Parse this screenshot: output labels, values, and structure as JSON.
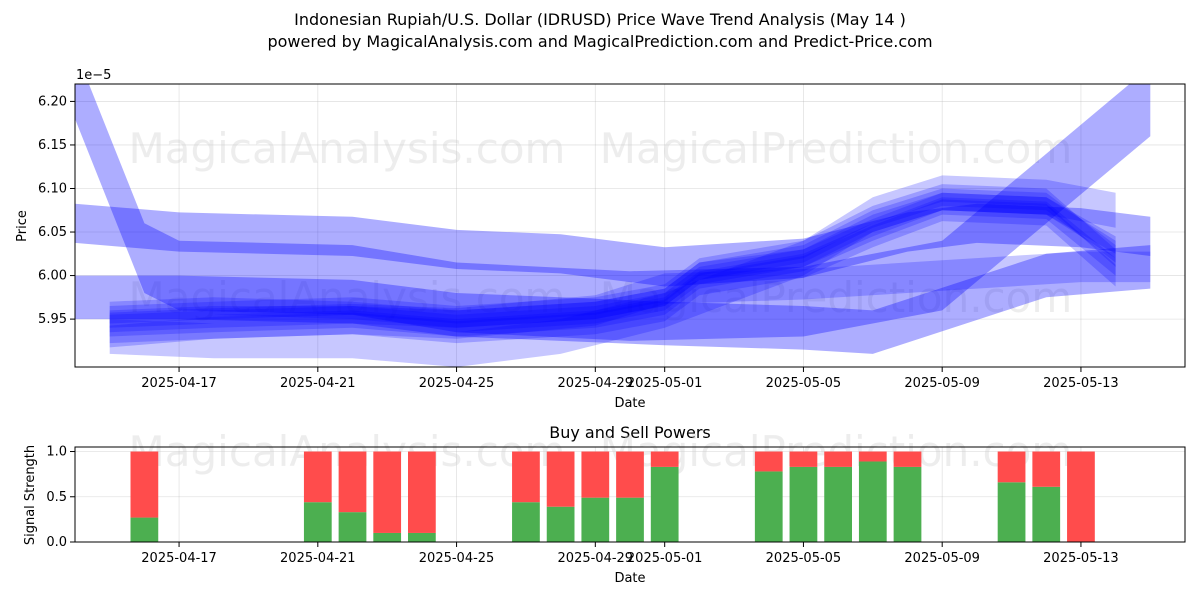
{
  "title_line1": "Indonesian Rupiah/U.S. Dollar (IDRUSD) Price Wave Trend Analysis (May 14 )",
  "title_line2": "powered by MagicalAnalysis.com and MagicalPrediction.com and Predict-Price.com",
  "watermarks": {
    "left": "MagicalAnalysis.com",
    "right": "MagicalPrediction.com"
  },
  "colors": {
    "wave": "#0000ff",
    "buy": "#4caf50",
    "sell": "#ff4c4c"
  },
  "chart_data": [
    {
      "type": "area",
      "xlabel": "Date",
      "ylabel": "Price",
      "y_offset_label": "1e−5",
      "xlim": [
        "2025-04-14",
        "2025-05-16"
      ],
      "ylim": [
        5.895,
        6.22
      ],
      "yticks": [
        5.95,
        6.0,
        6.05,
        6.1,
        6.15,
        6.2
      ],
      "ytick_labels": [
        "5.95",
        "6.00",
        "6.05",
        "6.10",
        "6.15",
        "6.20"
      ],
      "xticks": [
        "2025-04-17",
        "2025-04-21",
        "2025-04-25",
        "2025-04-29",
        "2025-05-01",
        "2025-05-05",
        "2025-05-09",
        "2025-05-13"
      ],
      "grid": true,
      "series": [
        {
          "x": [
            "2025-04-14",
            "2025-04-16",
            "2025-04-17",
            "2025-04-22",
            "2025-04-25",
            "2025-04-30",
            "2025-05-05",
            "2025-05-09",
            "2025-05-12",
            "2025-05-15"
          ],
          "y": [
            6.22,
            6.02,
            6.0,
            5.995,
            5.975,
            5.965,
            5.97,
            6.0,
            6.1,
            6.2
          ],
          "width": 0.08
        },
        {
          "x": [
            "2025-04-14",
            "2025-04-17",
            "2025-04-22",
            "2025-04-25",
            "2025-04-28",
            "2025-05-01",
            "2025-05-05",
            "2025-05-08",
            "2025-05-10",
            "2025-05-13",
            "2025-05-15"
          ],
          "y": [
            6.06,
            6.05,
            6.045,
            6.03,
            6.025,
            6.01,
            6.02,
            6.05,
            6.06,
            6.055,
            6.045
          ],
          "width": 0.045
        },
        {
          "x": [
            "2025-04-14",
            "2025-04-17",
            "2025-04-22",
            "2025-04-25",
            "2025-04-28",
            "2025-05-01",
            "2025-05-05",
            "2025-05-07",
            "2025-05-12",
            "2025-05-15"
          ],
          "y": [
            5.975,
            5.975,
            5.97,
            5.955,
            5.95,
            5.945,
            5.94,
            5.935,
            6.0,
            6.01
          ],
          "width": 0.05
        },
        {
          "x": [
            "2025-04-15",
            "2025-04-18",
            "2025-04-22",
            "2025-04-25",
            "2025-04-29",
            "2025-05-01",
            "2025-05-02",
            "2025-05-05",
            "2025-05-07",
            "2025-05-09",
            "2025-05-12",
            "2025-05-14"
          ],
          "y": [
            5.95,
            5.955,
            5.955,
            5.945,
            5.955,
            5.97,
            6.0,
            6.02,
            6.06,
            6.085,
            6.08,
            6.03
          ],
          "width": 0.02
        },
        {
          "x": [
            "2025-04-15",
            "2025-04-18",
            "2025-04-22",
            "2025-04-25",
            "2025-04-29",
            "2025-05-01",
            "2025-05-02",
            "2025-05-05",
            "2025-05-07",
            "2025-05-09",
            "2025-05-12",
            "2025-05-14"
          ],
          "y": [
            5.945,
            5.95,
            5.955,
            5.95,
            5.96,
            5.975,
            6.005,
            6.025,
            6.065,
            6.09,
            6.085,
            6.025
          ],
          "width": 0.02
        },
        {
          "x": [
            "2025-04-15",
            "2025-04-18",
            "2025-04-22",
            "2025-04-25",
            "2025-04-29",
            "2025-05-01",
            "2025-05-02",
            "2025-05-05",
            "2025-05-07",
            "2025-05-09",
            "2025-05-12",
            "2025-05-14"
          ],
          "y": [
            5.955,
            5.96,
            5.965,
            5.955,
            5.965,
            5.98,
            6.01,
            6.03,
            6.07,
            6.095,
            6.09,
            6.02
          ],
          "width": 0.02
        },
        {
          "x": [
            "2025-04-15",
            "2025-04-18",
            "2025-04-22",
            "2025-04-25",
            "2025-04-29",
            "2025-05-01",
            "2025-05-02",
            "2025-05-05",
            "2025-05-07",
            "2025-05-09",
            "2025-05-12",
            "2025-05-14"
          ],
          "y": [
            5.94,
            5.945,
            5.95,
            5.94,
            5.95,
            5.965,
            5.995,
            6.015,
            6.05,
            6.08,
            6.075,
            6.01
          ],
          "width": 0.02
        },
        {
          "x": [
            "2025-04-15",
            "2025-04-18",
            "2025-04-22",
            "2025-04-25",
            "2025-04-29",
            "2025-05-01",
            "2025-05-02",
            "2025-05-05",
            "2025-05-07",
            "2025-05-09",
            "2025-05-12",
            "2025-05-14"
          ],
          "y": [
            5.96,
            5.965,
            5.96,
            5.95,
            5.96,
            5.975,
            6.005,
            6.02,
            6.055,
            6.085,
            6.08,
            6.035
          ],
          "width": 0.02
        },
        {
          "x": [
            "2025-04-15",
            "2025-04-18",
            "2025-04-22",
            "2025-04-25",
            "2025-04-29",
            "2025-05-01",
            "2025-05-02",
            "2025-05-05",
            "2025-05-07",
            "2025-05-09",
            "2025-05-12",
            "2025-05-14"
          ],
          "y": [
            5.93,
            5.94,
            5.945,
            5.935,
            5.945,
            5.96,
            5.99,
            6.01,
            6.045,
            6.075,
            6.07,
            6.0
          ],
          "width": 0.025
        },
        {
          "x": [
            "2025-04-15",
            "2025-04-18",
            "2025-04-22",
            "2025-04-25",
            "2025-04-29",
            "2025-05-01",
            "2025-05-05",
            "2025-05-09",
            "2025-05-13",
            "2025-05-15"
          ],
          "y": [
            5.94,
            5.945,
            5.95,
            5.945,
            5.96,
            5.985,
            5.99,
            6.0,
            6.01,
            6.01
          ],
          "width": 0.035
        },
        {
          "x": [
            "2025-04-15",
            "2025-04-18",
            "2025-04-22",
            "2025-04-25",
            "2025-04-28",
            "2025-05-01",
            "2025-05-05",
            "2025-05-07",
            "2025-05-09",
            "2025-05-12",
            "2025-05-14"
          ],
          "y": [
            5.93,
            5.925,
            5.925,
            5.915,
            5.93,
            5.96,
            6.02,
            6.07,
            6.095,
            6.09,
            6.075
          ],
          "width": 0.04
        }
      ]
    },
    {
      "type": "bar",
      "stacked": true,
      "title": "Buy and Sell Powers",
      "xlabel": "Date",
      "ylabel": "Signal Strength",
      "ylim": [
        0,
        1.05
      ],
      "yticks": [
        0.0,
        0.5,
        1.0
      ],
      "ytick_labels": [
        "0.0",
        "0.5",
        "1.0"
      ],
      "xticks": [
        "2025-04-17",
        "2025-04-21",
        "2025-04-25",
        "2025-04-29",
        "2025-05-01",
        "2025-05-05",
        "2025-05-09",
        "2025-05-13"
      ],
      "categories": [
        "2025-04-16",
        "2025-04-21",
        "2025-04-22",
        "2025-04-23",
        "2025-04-24",
        "2025-04-27",
        "2025-04-28",
        "2025-04-29",
        "2025-04-30",
        "2025-05-01",
        "2025-05-04",
        "2025-05-05",
        "2025-05-06",
        "2025-05-07",
        "2025-05-08",
        "2025-05-11",
        "2025-05-12",
        "2025-05-13"
      ],
      "series": [
        {
          "values": [
            0.27,
            0.44,
            0.33,
            0.1,
            0.1,
            0.44,
            0.39,
            0.49,
            0.49,
            0.83,
            0.78,
            0.83,
            0.83,
            0.89,
            0.83,
            0.66,
            0.61,
            0.0
          ]
        },
        {
          "values": [
            0.73,
            0.56,
            0.67,
            0.9,
            0.9,
            0.56,
            0.61,
            0.51,
            0.51,
            0.17,
            0.22,
            0.17,
            0.17,
            0.11,
            0.17,
            0.34,
            0.39,
            1.0
          ]
        }
      ]
    }
  ]
}
